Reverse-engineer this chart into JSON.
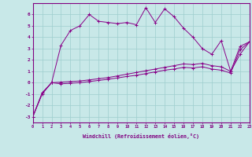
{
  "xlabel": "Windchill (Refroidissement éolien,°C)",
  "x": [
    0,
    1,
    2,
    3,
    4,
    5,
    6,
    7,
    8,
    9,
    10,
    11,
    12,
    13,
    14,
    15,
    16,
    17,
    18,
    19,
    20,
    21,
    22,
    23
  ],
  "line1": [
    -3.0,
    -1.0,
    0.0,
    3.3,
    4.6,
    5.0,
    6.0,
    5.4,
    5.3,
    5.2,
    5.3,
    5.1,
    6.6,
    5.3,
    6.5,
    5.8,
    4.8,
    4.0,
    3.0,
    2.5,
    3.7,
    1.0,
    2.5,
    3.6
  ],
  "line2": [
    -3.0,
    -0.9,
    0.0,
    0.05,
    0.1,
    0.15,
    0.25,
    0.35,
    0.45,
    0.6,
    0.75,
    0.9,
    1.05,
    1.2,
    1.35,
    1.5,
    1.65,
    1.6,
    1.7,
    1.5,
    1.4,
    1.0,
    3.2,
    3.6
  ],
  "line3": [
    -3.0,
    -0.9,
    0.0,
    -0.1,
    -0.05,
    0.0,
    0.1,
    0.2,
    0.3,
    0.42,
    0.55,
    0.65,
    0.8,
    0.95,
    1.1,
    1.2,
    1.35,
    1.3,
    1.4,
    1.2,
    1.1,
    0.85,
    2.9,
    3.6
  ],
  "line_color": "#880088",
  "bg_color": "#c8e8e8",
  "grid_color": "#9ecece",
  "axis_color": "#800080",
  "ylim": [
    -3.5,
    7.0
  ],
  "xlim": [
    0,
    23
  ]
}
